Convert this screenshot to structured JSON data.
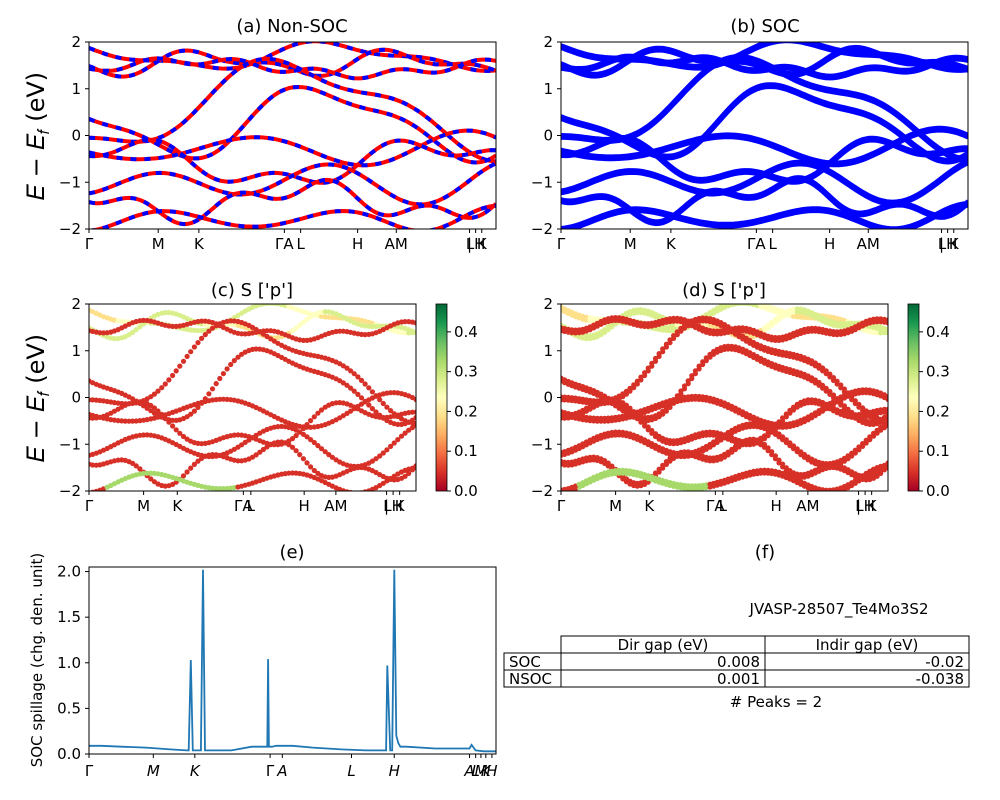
{
  "chart_data": [
    {
      "panel": "a",
      "type": "line",
      "title": "(a) Non-SOC",
      "ylabel": "E − E_f (eV)",
      "ylim": [
        -2,
        2
      ],
      "yticks": [
        "2",
        "1",
        "0",
        "−1",
        "−2"
      ],
      "kticks": [
        "Γ",
        "M",
        "K",
        "ΓA",
        "L",
        "H",
        "AM",
        "|",
        "LH",
        "K"
      ],
      "series_colors": [
        "#ff0000",
        "#0000ff"
      ]
    },
    {
      "panel": "b",
      "type": "line",
      "title": "(b) SOC",
      "ylim": [
        -2,
        2
      ],
      "yticks": [
        "2",
        "1",
        "0",
        "−1",
        "−2"
      ],
      "kticks": [
        "Γ",
        "M",
        "K",
        "ΓA",
        "L",
        "H",
        "AM",
        "|",
        "LH",
        "K"
      ],
      "series_colors": [
        "#0000ff"
      ]
    },
    {
      "panel": "c",
      "type": "scatter",
      "title": "(c)  S ['p']",
      "ylabel": "E − E_f (eV)",
      "ylim": [
        -2,
        2
      ],
      "yticks": [
        "2",
        "1",
        "0",
        "−1",
        "−2"
      ],
      "kticks": [
        "Γ",
        "M",
        "K",
        "ΓA",
        "L",
        "H",
        "AM",
        "|",
        "LH",
        "K"
      ],
      "colorbar_ticks": [
        "0.4",
        "0.3",
        "0.2",
        "0.1",
        "0.0"
      ],
      "colorbar_range": [
        0,
        0.47
      ],
      "colormap": "RdYlGn"
    },
    {
      "panel": "d",
      "type": "scatter",
      "title": "(d) S ['p']",
      "ylim": [
        -2,
        2
      ],
      "yticks": [
        "2",
        "1",
        "0",
        "−1",
        "−2"
      ],
      "kticks": [
        "Γ",
        "M",
        "K",
        "ΓA",
        "L",
        "H",
        "AM",
        "|",
        "LH",
        "K"
      ],
      "colorbar_ticks": [
        "0.4",
        "0.3",
        "0.2",
        "0.1",
        "0.0"
      ],
      "colorbar_range": [
        0,
        0.47
      ],
      "colormap": "RdYlGn"
    },
    {
      "panel": "e",
      "type": "line",
      "title": "(e)",
      "ylabel": "SOC spillage (chg. den. unit)",
      "ylim": [
        0,
        2.05
      ],
      "yticks": [
        "2.0",
        "1.5",
        "1.0",
        "0.5",
        "0.0"
      ],
      "kticks": [
        "Γ",
        "M",
        "K",
        "Γ",
        "A",
        "L",
        "H",
        "A",
        "L",
        "M",
        "K",
        "H"
      ],
      "x": [
        0,
        0.03,
        0.08,
        0.14,
        0.2,
        0.24,
        0.245,
        0.25,
        0.255,
        0.26,
        0.27,
        0.275,
        0.28,
        0.285,
        0.29,
        0.3,
        0.35,
        0.4,
        0.43,
        0.438,
        0.44,
        0.442,
        0.45,
        0.46,
        0.5,
        0.55,
        0.62,
        0.68,
        0.72,
        0.73,
        0.733,
        0.74,
        0.745,
        0.75,
        0.755,
        0.76,
        0.765,
        0.78,
        0.85,
        0.92,
        0.935,
        0.94,
        0.945,
        0.95,
        0.97,
        1.0
      ],
      "values": [
        0.09,
        0.09,
        0.08,
        0.07,
        0.05,
        0.04,
        0.04,
        1.03,
        0.04,
        0.04,
        0.04,
        0.04,
        2.02,
        0.04,
        0.04,
        0.04,
        0.04,
        0.08,
        0.08,
        0.08,
        1.04,
        0.08,
        0.08,
        0.09,
        0.09,
        0.07,
        0.05,
        0.04,
        0.04,
        0.04,
        0.97,
        0.04,
        0.04,
        2.02,
        0.2,
        0.12,
        0.08,
        0.08,
        0.06,
        0.06,
        0.06,
        0.1,
        0.07,
        0.04,
        0.03,
        0.03
      ],
      "color": "#1f77b4"
    }
  ],
  "panel_f": {
    "title": "(f)",
    "material": "JVASP-28507_Te4Mo3S2",
    "table": {
      "columns": [
        "",
        "Dir gap (eV)",
        "Indir gap (eV)"
      ],
      "rows": [
        {
          "label": "SOC",
          "dir": "0.008",
          "indir": "-0.02"
        },
        {
          "label": "NSOC",
          "dir": "0.001",
          "indir": "-0.038"
        }
      ]
    },
    "peaks": "# Peaks = 2"
  }
}
